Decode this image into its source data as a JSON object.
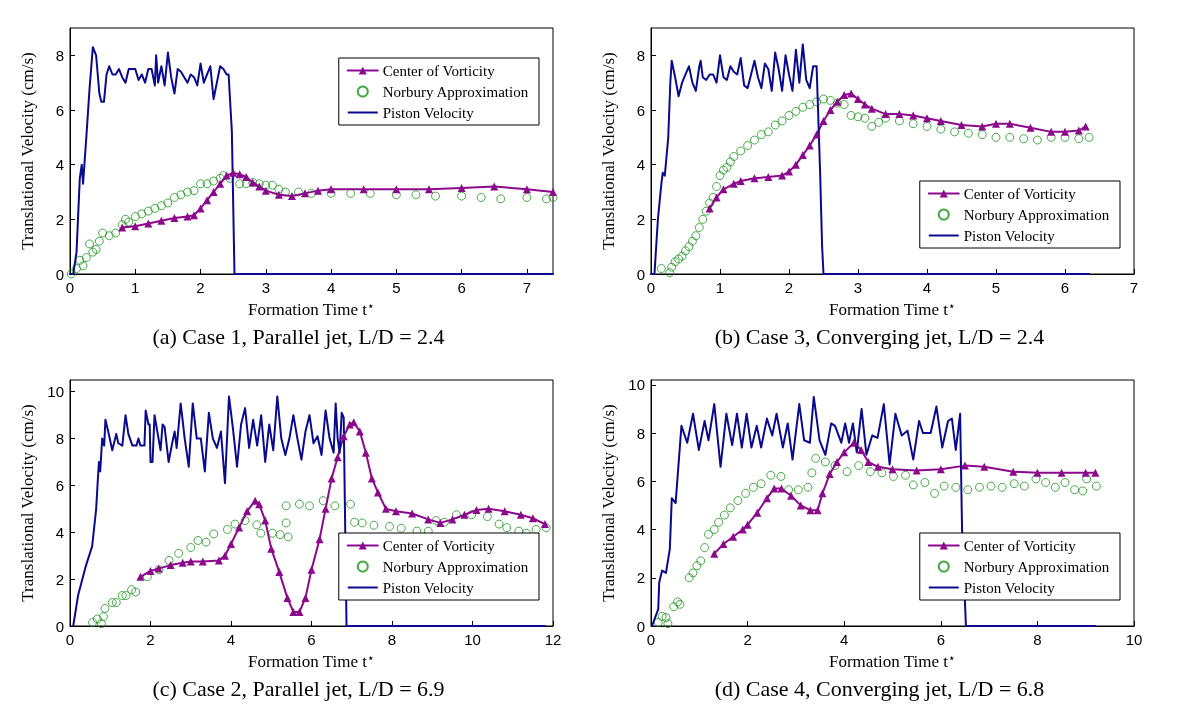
{
  "chart_data": [
    {
      "type": "line",
      "title": "(a) Case 1, Parallel jet, L/D = 2.4",
      "xlabel": "Formation Time t$^{⋆}$",
      "ylabel": "Translational Velocity (cm/s)",
      "xlim": [
        0,
        7.4
      ],
      "ylim": [
        0,
        9
      ],
      "xticks": [
        0,
        1,
        2,
        3,
        4,
        5,
        6,
        7
      ],
      "yticks": [
        0,
        2,
        4,
        6,
        8
      ],
      "legend": "top right",
      "series": [
        {
          "name": "Center of Vorticity",
          "color": "#8b0a8b",
          "type": "line",
          "marker": "triangle",
          "x": [
            0.8,
            1.0,
            1.2,
            1.4,
            1.6,
            1.8,
            1.9,
            2.0,
            2.1,
            2.2,
            2.3,
            2.4,
            2.5,
            2.6,
            2.7,
            2.8,
            2.9,
            3.0,
            3.2,
            3.4,
            3.6,
            3.8,
            4.0,
            4.5,
            5.0,
            5.5,
            6.0,
            6.5,
            7.0,
            7.4
          ],
          "values": [
            1.7,
            1.75,
            1.85,
            1.95,
            2.05,
            2.1,
            2.15,
            2.4,
            2.7,
            3.0,
            3.3,
            3.6,
            3.7,
            3.65,
            3.55,
            3.35,
            3.2,
            3.05,
            2.9,
            2.85,
            2.95,
            3.05,
            3.1,
            3.1,
            3.1,
            3.1,
            3.15,
            3.2,
            3.1,
            3.0
          ]
        },
        {
          "name": "Norbury Approximation",
          "color": "#1a961a",
          "type": "scatter",
          "marker": "circle",
          "x": [
            0.02,
            0.1,
            0.15,
            0.2,
            0.25,
            0.3,
            0.35,
            0.4,
            0.45,
            0.5,
            0.6,
            0.7,
            0.8,
            0.85,
            0.9,
            1.0,
            1.1,
            1.2,
            1.3,
            1.4,
            1.5,
            1.6,
            1.7,
            1.8,
            1.9,
            2.0,
            2.1,
            2.2,
            2.3,
            2.35,
            2.45,
            2.6,
            2.7,
            2.8,
            2.9,
            3.0,
            3.1,
            3.2,
            3.3,
            3.5,
            3.7,
            4.0,
            4.3,
            4.6,
            5.0,
            5.3,
            5.6,
            6.0,
            6.3,
            6.6,
            7.0,
            7.3,
            7.4
          ],
          "values": [
            0,
            0.2,
            0.5,
            0.3,
            0.6,
            1.1,
            0.8,
            0.9,
            1.2,
            1.5,
            1.4,
            1.5,
            1.8,
            2.0,
            1.9,
            2.1,
            2.2,
            2.3,
            2.4,
            2.5,
            2.6,
            2.8,
            2.9,
            3.0,
            3.05,
            3.3,
            3.3,
            3.4,
            3.5,
            3.6,
            3.5,
            3.3,
            3.3,
            3.35,
            3.3,
            3.25,
            3.25,
            3.1,
            3.0,
            3.0,
            2.95,
            2.95,
            2.95,
            2.95,
            2.9,
            2.9,
            2.85,
            2.85,
            2.8,
            2.75,
            2.8,
            2.75,
            2.8
          ]
        },
        {
          "name": "Piston Velocity",
          "color": "#0a0a8c",
          "marker": "none",
          "x": [
            0,
            0.05,
            0.1,
            0.15,
            0.18,
            0.2,
            0.25,
            0.3,
            0.35,
            0.4,
            0.45,
            0.48,
            0.52,
            0.56,
            0.6,
            0.65,
            0.7,
            0.75,
            0.8,
            0.85,
            0.9,
            1.0,
            1.05,
            1.1,
            1.15,
            1.2,
            1.25,
            1.3,
            1.32,
            1.35,
            1.4,
            1.45,
            1.5,
            1.55,
            1.6,
            1.65,
            1.7,
            1.8,
            1.85,
            1.9,
            1.95,
            2.0,
            2.05,
            2.1,
            2.15,
            2.2,
            2.25,
            2.3,
            2.35,
            2.4,
            2.43,
            2.48,
            2.52,
            7.4
          ],
          "values": [
            0,
            0,
            0.8,
            3.5,
            4.0,
            3.3,
            5.0,
            6.8,
            8.3,
            8.0,
            6.6,
            6.3,
            6.3,
            7.3,
            7.6,
            7.3,
            7.3,
            7.5,
            7.2,
            7.0,
            7.5,
            7.5,
            7.1,
            7.3,
            7.0,
            7.5,
            7.5,
            6.9,
            8.0,
            7.0,
            7.6,
            6.9,
            8.1,
            7.2,
            6.6,
            7.5,
            7.4,
            7.0,
            7.3,
            7.2,
            6.9,
            7.7,
            7.0,
            7.3,
            7.6,
            6.4,
            7.0,
            7.6,
            7.5,
            7.3,
            7.3,
            5.2,
            0,
            0
          ]
        }
      ]
    },
    {
      "type": "line",
      "title": "(b) Case 3, Converging jet, L/D = 2.4",
      "xlabel": "Formation Time t$^{⋆}$",
      "ylabel": "Translational Velocity (cm/s)",
      "xlim": [
        0,
        7
      ],
      "ylim": [
        0,
        9
      ],
      "xticks": [
        0,
        1,
        2,
        3,
        4,
        5,
        6,
        7
      ],
      "yticks": [
        0,
        2,
        4,
        6,
        8
      ],
      "legend": "bottom right",
      "series": [
        {
          "name": "Center of Vorticity",
          "color": "#8b0a8b",
          "type": "line",
          "marker": "triangle",
          "x": [
            0.85,
            0.95,
            1.05,
            1.2,
            1.3,
            1.5,
            1.7,
            1.9,
            2.0,
            2.1,
            2.2,
            2.3,
            2.4,
            2.5,
            2.6,
            2.7,
            2.8,
            2.9,
            3.0,
            3.1,
            3.2,
            3.4,
            3.6,
            3.8,
            4.0,
            4.2,
            4.5,
            4.8,
            5.0,
            5.2,
            5.5,
            5.8,
            6.0,
            6.2,
            6.3
          ],
          "values": [
            2.4,
            2.8,
            3.1,
            3.3,
            3.4,
            3.5,
            3.55,
            3.6,
            3.75,
            4.0,
            4.35,
            4.7,
            5.1,
            5.6,
            6.0,
            6.3,
            6.55,
            6.6,
            6.4,
            6.2,
            6.05,
            5.85,
            5.85,
            5.8,
            5.7,
            5.6,
            5.45,
            5.4,
            5.5,
            5.5,
            5.35,
            5.2,
            5.2,
            5.25,
            5.4
          ]
        },
        {
          "name": "Norbury Approximation",
          "color": "#1a961a",
          "type": "scatter",
          "marker": "circle",
          "x": [
            0.15,
            0.27,
            0.3,
            0.35,
            0.4,
            0.45,
            0.5,
            0.55,
            0.6,
            0.65,
            0.7,
            0.75,
            0.8,
            0.85,
            0.9,
            0.95,
            1.0,
            1.05,
            1.1,
            1.15,
            1.2,
            1.3,
            1.4,
            1.5,
            1.6,
            1.7,
            1.8,
            1.9,
            2.0,
            2.1,
            2.2,
            2.3,
            2.4,
            2.5,
            2.6,
            2.7,
            2.8,
            2.9,
            3.0,
            3.1,
            3.2,
            3.3,
            3.4,
            3.6,
            3.8,
            4.0,
            4.2,
            4.4,
            4.6,
            4.8,
            5.0,
            5.2,
            5.4,
            5.6,
            5.8,
            6.0,
            6.2,
            6.35
          ],
          "values": [
            0.2,
            0.05,
            0.25,
            0.45,
            0.55,
            0.65,
            0.85,
            1.0,
            1.2,
            1.4,
            1.7,
            2.0,
            2.3,
            2.6,
            2.8,
            3.2,
            3.6,
            3.8,
            3.9,
            4.1,
            4.3,
            4.5,
            4.7,
            4.9,
            5.1,
            5.2,
            5.45,
            5.6,
            5.8,
            5.95,
            6.1,
            6.2,
            6.3,
            6.4,
            6.35,
            6.25,
            6.2,
            5.8,
            5.75,
            5.7,
            5.4,
            5.55,
            5.7,
            5.6,
            5.5,
            5.4,
            5.3,
            5.2,
            5.15,
            5.1,
            5.0,
            5.0,
            4.95,
            4.9,
            5.0,
            5.0,
            4.95,
            5.0
          ]
        },
        {
          "name": "Piston Velocity",
          "color": "#0a0a8c",
          "marker": "none",
          "x": [
            0,
            0.05,
            0.1,
            0.15,
            0.17,
            0.2,
            0.25,
            0.28,
            0.3,
            0.35,
            0.4,
            0.45,
            0.5,
            0.55,
            0.6,
            0.65,
            0.7,
            0.72,
            0.75,
            0.8,
            0.85,
            0.9,
            0.95,
            1.0,
            1.05,
            1.1,
            1.15,
            1.2,
            1.25,
            1.3,
            1.35,
            1.4,
            1.5,
            1.55,
            1.6,
            1.65,
            1.7,
            1.75,
            1.8,
            1.85,
            1.9,
            1.95,
            2.0,
            2.05,
            2.1,
            2.15,
            2.2,
            2.25,
            2.3,
            2.35,
            2.4,
            2.45,
            2.48,
            2.5,
            6.35
          ],
          "values": [
            0,
            0,
            2.0,
            3.3,
            3.7,
            3.6,
            5.0,
            7.0,
            7.8,
            7.2,
            6.5,
            7.0,
            7.3,
            7.6,
            7.0,
            6.7,
            7.6,
            7.8,
            7.2,
            7.1,
            7.3,
            7.3,
            7.0,
            8.0,
            7.2,
            7.1,
            7.6,
            7.4,
            7.3,
            7.9,
            6.9,
            6.8,
            7.8,
            7.2,
            6.8,
            7.7,
            7.5,
            6.7,
            8.1,
            7.5,
            6.7,
            8.0,
            7.3,
            6.7,
            8.2,
            7.0,
            8.4,
            7.1,
            6.8,
            7.6,
            7.6,
            3.8,
            1.0,
            0,
            0
          ]
        }
      ]
    },
    {
      "type": "line",
      "title": "(c) Case 2, Parallel jet, L/D = 6.9",
      "xlabel": "Formation Time t$^{⋆}$",
      "ylabel": "Translational Velocity (cm/s)",
      "xlim": [
        0,
        12
      ],
      "ylim": [
        0,
        10.5
      ],
      "xticks": [
        0,
        2,
        4,
        6,
        8,
        10,
        12
      ],
      "yticks": [
        0,
        2,
        4,
        6,
        8,
        10
      ],
      "legend": "bottom right",
      "series": [
        {
          "name": "Center of Vorticity",
          "color": "#8b0a8b",
          "type": "line",
          "marker": "triangle",
          "x": [
            1.75,
            2.0,
            2.2,
            2.5,
            2.8,
            3.0,
            3.3,
            3.7,
            3.85,
            4.0,
            4.2,
            4.4,
            4.6,
            4.7,
            4.85,
            5.0,
            5.2,
            5.4,
            5.55,
            5.7,
            5.85,
            6.0,
            6.2,
            6.35,
            6.5,
            6.65,
            6.8,
            6.95,
            7.05,
            7.2,
            7.35,
            7.5,
            7.65,
            7.85,
            8.1,
            8.5,
            8.9,
            9.2,
            9.5,
            9.8,
            10.1,
            10.4,
            10.8,
            11.2,
            11.5,
            11.8
          ],
          "values": [
            2.1,
            2.35,
            2.45,
            2.6,
            2.7,
            2.75,
            2.75,
            2.8,
            3.0,
            3.5,
            4.2,
            4.9,
            5.35,
            5.2,
            4.5,
            3.3,
            2.3,
            1.2,
            0.6,
            0.6,
            1.2,
            2.4,
            3.7,
            5.0,
            6.3,
            7.2,
            8.1,
            8.6,
            8.7,
            8.3,
            7.4,
            6.3,
            5.7,
            5.0,
            4.9,
            4.8,
            4.55,
            4.4,
            4.55,
            4.75,
            4.95,
            5.0,
            4.9,
            4.75,
            4.6,
            4.35
          ]
        },
        {
          "name": "Norbury Approximation",
          "color": "#1a961a",
          "type": "scatter",
          "marker": "circle",
          "x": [
            0.56,
            0.68,
            0.78,
            0.83,
            0.87,
            1.05,
            1.15,
            1.3,
            1.39,
            1.53,
            1.63,
            1.92,
            2.21,
            2.46,
            2.7,
            3.0,
            3.18,
            3.38,
            3.57,
            3.91,
            4.1,
            4.35,
            4.64,
            4.74,
            5.03,
            5.22,
            5.37,
            5.42,
            5.37,
            5.7,
            5.95,
            6.29,
            6.58,
            6.97,
            7.07,
            7.26,
            7.55,
            7.94,
            8.23,
            8.62,
            8.9,
            9.1,
            9.3,
            9.6,
            9.98,
            10.37,
            10.66,
            10.85,
            11.15,
            11.34,
            11.58,
            11.83
          ],
          "values": [
            0.15,
            0.3,
            0.1,
            0.4,
            0.75,
            1.0,
            1.0,
            1.3,
            1.3,
            1.55,
            1.45,
            2.1,
            2.4,
            2.8,
            3.1,
            3.35,
            3.65,
            3.58,
            3.93,
            4.12,
            4.35,
            4.5,
            4.32,
            3.96,
            3.96,
            3.9,
            4.4,
            3.8,
            5.13,
            5.2,
            5.13,
            5.35,
            5.13,
            5.2,
            4.43,
            4.4,
            4.3,
            4.25,
            4.17,
            4.05,
            4.05,
            4.5,
            4.43,
            4.75,
            4.75,
            4.67,
            4.35,
            4.2,
            4.05,
            3.96,
            4.12,
            4.2
          ]
        },
        {
          "name": "Piston Velocity",
          "color": "#0a0a8c",
          "marker": "none",
          "x": [
            0.08,
            0.2,
            0.4,
            0.55,
            0.65,
            0.7,
            0.72,
            0.75,
            0.8,
            0.85,
            0.88,
            0.95,
            1.05,
            1.15,
            1.2,
            1.3,
            1.38,
            1.45,
            1.55,
            1.65,
            1.7,
            1.75,
            1.85,
            1.88,
            1.95,
            1.98,
            2.0,
            2.05,
            2.1,
            2.2,
            2.25,
            2.3,
            2.35,
            2.45,
            2.55,
            2.6,
            2.65,
            2.75,
            2.85,
            2.95,
            3.05,
            3.15,
            3.25,
            3.35,
            3.45,
            3.55,
            3.65,
            3.75,
            3.85,
            3.95,
            4.05,
            4.15,
            4.25,
            4.35,
            4.45,
            4.55,
            4.65,
            4.75,
            4.85,
            4.95,
            5.05,
            5.15,
            5.25,
            5.35,
            5.45,
            5.55,
            5.65,
            5.75,
            5.85,
            5.95,
            6.05,
            6.15,
            6.25,
            6.35,
            6.45,
            6.55,
            6.6,
            6.65,
            6.7,
            6.75,
            6.8,
            6.87,
            11.8
          ],
          "values": [
            0,
            1.3,
            2.6,
            3.4,
            5.0,
            6.5,
            7.0,
            6.6,
            8.0,
            7.7,
            8.8,
            8.3,
            7.5,
            8.2,
            7.8,
            7.7,
            9.0,
            8.2,
            7.7,
            7.7,
            8.0,
            7.7,
            7.7,
            9.2,
            8.6,
            8.6,
            7.0,
            7.0,
            9.0,
            8.0,
            7.5,
            8.6,
            8.5,
            7.0,
            7.9,
            8.3,
            7.6,
            9.5,
            8.0,
            6.8,
            9.5,
            8.0,
            8.0,
            6.6,
            9.1,
            8.0,
            7.6,
            8.3,
            6.1,
            9.8,
            8.4,
            6.8,
            8.6,
            9.3,
            7.6,
            8.8,
            7.7,
            9.0,
            7.0,
            8.6,
            7.5,
            9.8,
            8.0,
            7.3,
            8.0,
            9.0,
            8.0,
            7.1,
            8.3,
            9.0,
            7.8,
            8.1,
            7.3,
            9.2,
            8.0,
            7.4,
            9.5,
            8.0,
            7.4,
            9.1,
            8.9,
            0,
            0
          ]
        }
      ]
    },
    {
      "type": "line",
      "title": "(d) Case 4, Converging jet, L/D = 6.8",
      "xlabel": "Formation Time t$^{⋆}$",
      "ylabel": "Translational Velocity (cm/s)",
      "xlim": [
        0,
        10
      ],
      "ylim": [
        0,
        10.2
      ],
      "xticks": [
        0,
        2,
        4,
        6,
        8,
        10
      ],
      "yticks": [
        0,
        2,
        4,
        6,
        8,
        10
      ],
      "legend": "bottom right",
      "series": [
        {
          "name": "Center of Vorticity",
          "color": "#8b0a8b",
          "type": "line",
          "marker": "triangle",
          "x": [
            1.31,
            1.5,
            1.7,
            1.9,
            2.0,
            2.2,
            2.4,
            2.55,
            2.7,
            2.9,
            3.1,
            3.3,
            3.45,
            3.55,
            3.7,
            3.85,
            4.0,
            4.2,
            4.35,
            4.5,
            4.7,
            5.0,
            5.5,
            6.0,
            6.5,
            6.9,
            7.5,
            8.0,
            8.5,
            9.0,
            9.2
          ],
          "values": [
            3.0,
            3.4,
            3.7,
            4.0,
            4.2,
            4.7,
            5.3,
            5.7,
            5.7,
            5.4,
            5.0,
            4.8,
            4.8,
            5.5,
            6.3,
            6.8,
            7.2,
            7.6,
            7.3,
            6.8,
            6.6,
            6.5,
            6.45,
            6.5,
            6.65,
            6.6,
            6.4,
            6.35,
            6.35,
            6.35,
            6.35
          ]
        },
        {
          "name": "Norbury Approximation",
          "color": "#1a961a",
          "type": "scatter",
          "marker": "circle",
          "x": [
            0.15,
            0.23,
            0.31,
            0.35,
            0.47,
            0.55,
            0.6,
            0.79,
            0.87,
            0.95,
            1.03,
            1.11,
            1.19,
            1.31,
            1.4,
            1.52,
            1.64,
            1.8,
            1.96,
            2.12,
            2.28,
            2.48,
            2.69,
            2.85,
            3.05,
            3.25,
            3.33,
            3.41,
            3.61,
            3.81,
            4.06,
            4.3,
            4.54,
            4.78,
            5.02,
            5.27,
            5.43,
            5.67,
            5.87,
            6.07,
            6.31,
            6.56,
            6.8,
            7.04,
            7.27,
            7.52,
            7.73,
            7.97,
            8.17,
            8.37,
            8.57,
            8.77,
            8.94,
            9.02,
            9.22
          ],
          "values": [
            0.15,
            0.4,
            0.35,
            0.1,
            0.8,
            1.0,
            0.9,
            2.0,
            2.2,
            2.5,
            2.7,
            3.25,
            3.8,
            4.0,
            4.3,
            4.6,
            4.9,
            5.2,
            5.5,
            5.75,
            5.9,
            6.25,
            6.2,
            5.65,
            5.65,
            5.75,
            6.35,
            6.95,
            6.8,
            6.65,
            6.4,
            6.65,
            6.4,
            6.35,
            6.2,
            6.25,
            5.85,
            5.95,
            5.5,
            5.8,
            5.75,
            5.65,
            5.75,
            5.8,
            5.75,
            5.9,
            5.8,
            6.1,
            5.95,
            5.75,
            5.95,
            5.65,
            5.6,
            6.1,
            5.8
          ]
        },
        {
          "name": "Piston Velocity",
          "color": "#0a0a8c",
          "marker": "none",
          "x": [
            0.02,
            0.15,
            0.17,
            0.23,
            0.31,
            0.39,
            0.43,
            0.51,
            0.63,
            0.75,
            0.87,
            0.99,
            1.11,
            1.19,
            1.31,
            1.44,
            1.56,
            1.68,
            1.78,
            1.88,
            1.98,
            2.08,
            2.19,
            2.28,
            2.4,
            2.51,
            2.6,
            2.73,
            2.83,
            2.93,
            3.07,
            3.17,
            3.29,
            3.37,
            3.49,
            3.61,
            3.73,
            3.81,
            3.94,
            4.02,
            4.1,
            4.18,
            4.26,
            4.36,
            4.46,
            4.58,
            4.69,
            4.82,
            4.94,
            5.06,
            5.19,
            5.31,
            5.43,
            5.55,
            5.63,
            5.79,
            5.91,
            6.03,
            6.15,
            6.23,
            6.31,
            6.4,
            6.44,
            6.52,
            9.2
          ],
          "values": [
            0,
            0.7,
            1.8,
            2.3,
            2.2,
            3.2,
            5.3,
            5.1,
            8.3,
            7.6,
            8.8,
            7.3,
            8.5,
            7.7,
            9.2,
            6.6,
            8.8,
            7.5,
            8.8,
            7.4,
            8.8,
            7.4,
            8.3,
            7.4,
            8.6,
            7.9,
            8.8,
            7.4,
            8.4,
            6.9,
            9.2,
            7.7,
            7.6,
            9.5,
            7.7,
            7.1,
            8.4,
            8.3,
            7.6,
            8.4,
            7.6,
            8.4,
            7.2,
            9.0,
            7.1,
            7.9,
            7.8,
            9.2,
            6.7,
            8.8,
            7.9,
            8.1,
            6.9,
            8.5,
            8.0,
            8.0,
            9.1,
            7.4,
            8.5,
            8.6,
            7.3,
            8.8,
            4.0,
            0,
            0
          ]
        }
      ]
    }
  ]
}
